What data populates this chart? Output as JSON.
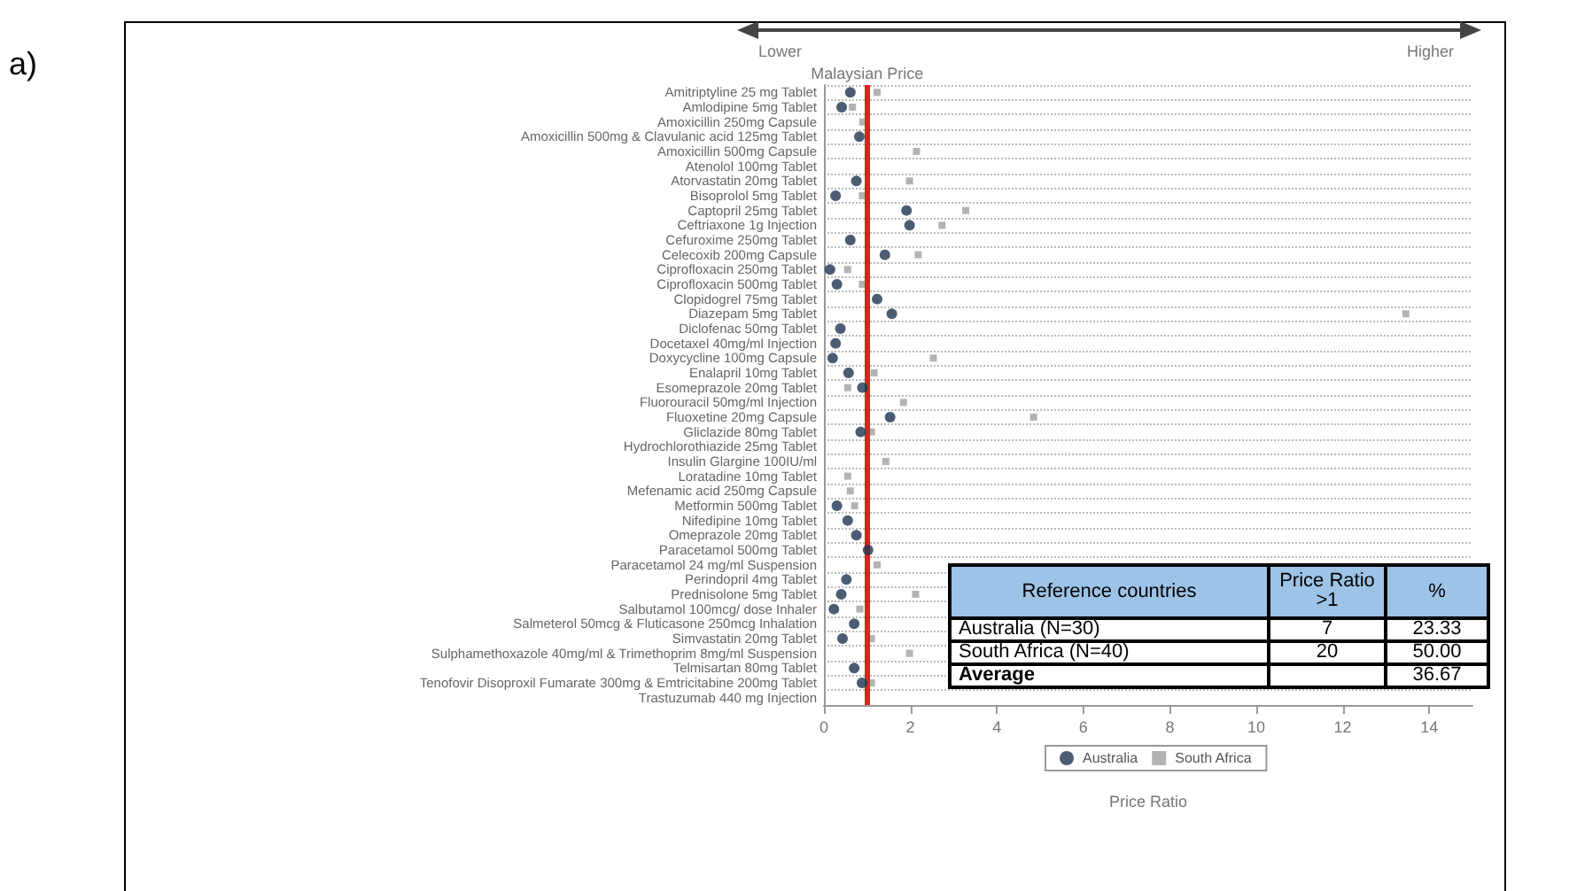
{
  "chart_data": {
    "type": "scatter",
    "xlabel": "Price Ratio",
    "categories": [
      "Amitriptyline 25 mg Tablet",
      "Amlodipine 5mg Tablet",
      "Amoxicillin 250mg Capsule",
      "Amoxicillin 500mg & Clavulanic acid 125mg Tablet",
      "Amoxicillin 500mg Capsule",
      "Atenolol 100mg Tablet",
      "Atorvastatin 20mg Tablet",
      "Bisoprolol 5mg Tablet",
      "Captopril 25mg Tablet",
      "Ceftriaxone 1g Injection",
      "Cefuroxime 250mg Tablet",
      "Celecoxib 200mg Capsule",
      "Ciprofloxacin 250mg Tablet",
      "Ciprofloxacin 500mg Tablet",
      "Clopidogrel 75mg Tablet",
      "Diazepam 5mg Tablet",
      "Diclofenac 50mg Tablet",
      "Docetaxel 40mg/ml Injection",
      "Doxycycline 100mg Capsule",
      "Enalapril 10mg Tablet",
      "Esomeprazole 20mg Tablet",
      "Fluorouracil 50mg/ml Injection",
      "Fluoxetine 20mg Capsule",
      "Gliclazide 80mg Tablet",
      "Hydrochlorothiazide 25mg Tablet",
      "Insulin Glargine 100IU/ml",
      "Loratadine 10mg Tablet",
      "Mefenamic acid 250mg Capsule",
      "Metformin 500mg Tablet",
      "Nifedipine 10mg Tablet",
      "Omeprazole 20mg Tablet",
      "Paracetamol 500mg Tablet",
      "Paracetamol 24 mg/ml Suspension",
      "Perindopril 4mg Tablet",
      "Prednisolone 5mg Tablet",
      "Salbutamol 100mcg/ dose Inhaler",
      "Salmeterol 50mcg & Fluticasone 250mcg Inhalation",
      "Simvastatin 20mg Tablet",
      "Sulphamethoxazole 40mg/ml & Trimethoprim 8mg/ml Suspension",
      "Telmisartan 80mg Tablet",
      "Tenofovir Disoproxil Fumarate 300mg & Emtricitabine 200mg Tablet",
      "Trastuzumab 440 mg Injection"
    ],
    "series": [
      {
        "name": "Australia",
        "color": "#1f3550",
        "marker": "circle",
        "values": [
          0.61,
          0.41,
          null,
          0.82,
          null,
          null,
          0.75,
          0.27,
          1.91,
          1.98,
          0.61,
          1.41,
          0.14,
          0.3,
          1.23,
          1.57,
          0.38,
          0.27,
          0.2,
          0.57,
          0.89,
          null,
          1.53,
          0.85,
          null,
          null,
          null,
          null,
          0.3,
          0.55,
          0.75,
          1.02,
          null,
          0.52,
          0.4,
          0.23,
          0.7,
          0.43,
          null,
          0.7,
          0.88,
          null
        ]
      },
      {
        "name": "South Africa",
        "color": "#a0a0a0",
        "marker": "square",
        "values": [
          1.23,
          0.66,
          0.9,
          null,
          2.14,
          null,
          1.98,
          0.89,
          3.28,
          2.73,
          null,
          2.18,
          0.55,
          0.89,
          null,
          13.46,
          null,
          null,
          2.53,
          1.16,
          0.55,
          1.84,
          4.85,
          1.1,
          null,
          1.43,
          0.55,
          0.61,
          0.71,
          null,
          null,
          null,
          1.23,
          null,
          2.12,
          0.83,
          null,
          1.1,
          1.98,
          null,
          1.1,
          null
        ]
      }
    ],
    "xlim": [
      0,
      15
    ],
    "xticks": [
      0,
      2,
      4,
      6,
      8,
      10,
      12,
      14
    ],
    "grid": "y",
    "legend": "bottom",
    "orientation": "horizontal",
    "ref_lines": [
      {
        "axis": "x",
        "value": 1,
        "label": "Malaysian Price",
        "color": "#e02020"
      }
    ],
    "annotations": [
      "a)",
      "Lower",
      "Higher",
      "Reference countries",
      "Price Ratio >1",
      "%",
      "Australia (N=30)",
      "7",
      "23.33",
      "South Africa (N=40)",
      "20",
      "50.00",
      "Average",
      null,
      "36.67"
    ]
  }
}
